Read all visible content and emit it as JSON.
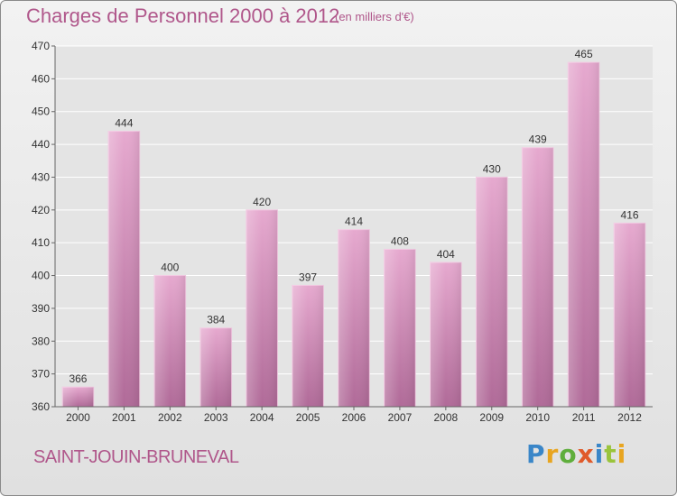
{
  "header": {
    "title": "Charges de Personnel 2000 à 2012",
    "subtitle": "(en milliers d'€)"
  },
  "footer": {
    "location": "SAINT-JOUIN-BRUNEVAL",
    "brand_letters": [
      {
        "char": "P",
        "color": "#3a86c8"
      },
      {
        "char": "r",
        "color": "#e8a520"
      },
      {
        "char": "o",
        "color": "#5fae3c"
      },
      {
        "char": "x",
        "color": "#e05a2a"
      },
      {
        "char": "i",
        "color": "#3a86c8"
      },
      {
        "char": "t",
        "color": "#9ac43b"
      },
      {
        "char": "i",
        "color": "#e8a520"
      }
    ]
  },
  "chart_data": {
    "type": "bar",
    "categories": [
      "2000",
      "2001",
      "2002",
      "2003",
      "2004",
      "2005",
      "2006",
      "2007",
      "2008",
      "2009",
      "2010",
      "2011",
      "2012"
    ],
    "values": [
      366,
      444,
      400,
      384,
      420,
      397,
      414,
      408,
      404,
      430,
      439,
      465,
      416
    ],
    "ylim": [
      360,
      470
    ],
    "yticks": [
      360,
      370,
      380,
      390,
      400,
      410,
      420,
      430,
      440,
      450,
      460,
      470
    ],
    "grid": true,
    "bar_color": "#d98fbc",
    "bar_color_dark": "#b06a98"
  }
}
